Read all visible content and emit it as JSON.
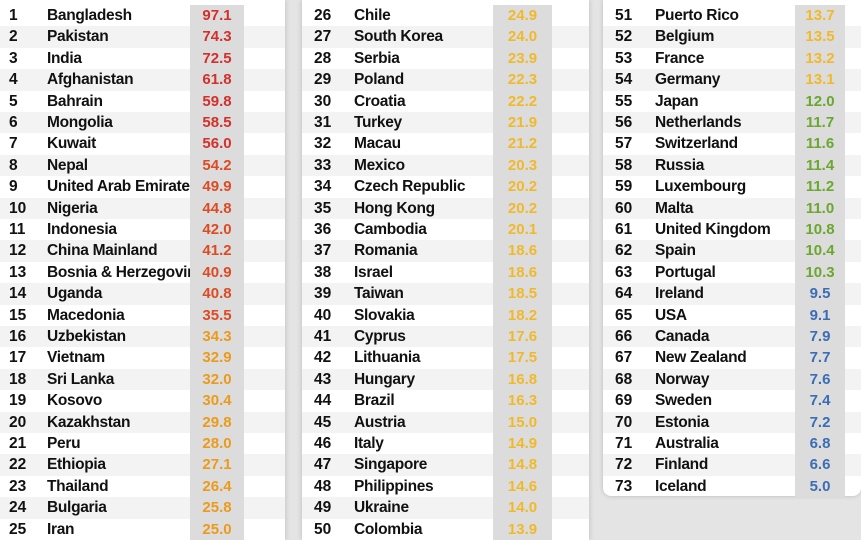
{
  "colors": {
    "red": "#d42f2a",
    "red_orange": "#dd4a24",
    "orange": "#ec9a1a",
    "yellow": "#f1b92a",
    "green": "#6aa72d",
    "blue": "#3a6db6",
    "score_cell_bg": "#dcdcdc"
  },
  "columns": [
    {
      "rows": [
        {
          "rank": "1",
          "country": "Bangladesh",
          "score": "97.1",
          "color": "red"
        },
        {
          "rank": "2",
          "country": "Pakistan",
          "score": "74.3",
          "color": "red"
        },
        {
          "rank": "3",
          "country": "India",
          "score": "72.5",
          "color": "red"
        },
        {
          "rank": "4",
          "country": "Afghanistan",
          "score": "61.8",
          "color": "red"
        },
        {
          "rank": "5",
          "country": "Bahrain",
          "score": "59.8",
          "color": "red"
        },
        {
          "rank": "6",
          "country": "Mongolia",
          "score": "58.5",
          "color": "red"
        },
        {
          "rank": "7",
          "country": "Kuwait",
          "score": "56.0",
          "color": "red"
        },
        {
          "rank": "8",
          "country": "Nepal",
          "score": "54.2",
          "color": "red_orange"
        },
        {
          "rank": "9",
          "country": "United Arab Emirates",
          "score": "49.9",
          "color": "red_orange"
        },
        {
          "rank": "10",
          "country": "Nigeria",
          "score": "44.8",
          "color": "red_orange"
        },
        {
          "rank": "11",
          "country": "Indonesia",
          "score": "42.0",
          "color": "red_orange"
        },
        {
          "rank": "12",
          "country": "China Mainland",
          "score": "41.2",
          "color": "red_orange"
        },
        {
          "rank": "13",
          "country": "Bosnia & Herzegovina",
          "score": "40.9",
          "color": "red_orange"
        },
        {
          "rank": "14",
          "country": "Uganda",
          "score": "40.8",
          "color": "red_orange"
        },
        {
          "rank": "15",
          "country": "Macedonia",
          "score": "35.5",
          "color": "red_orange"
        },
        {
          "rank": "16",
          "country": "Uzbekistan",
          "score": "34.3",
          "color": "orange"
        },
        {
          "rank": "17",
          "country": "Vietnam",
          "score": "32.9",
          "color": "orange"
        },
        {
          "rank": "18",
          "country": "Sri Lanka",
          "score": "32.0",
          "color": "orange"
        },
        {
          "rank": "19",
          "country": "Kosovo",
          "score": "30.4",
          "color": "orange"
        },
        {
          "rank": "20",
          "country": "Kazakhstan",
          "score": "29.8",
          "color": "orange"
        },
        {
          "rank": "21",
          "country": "Peru",
          "score": "28.0",
          "color": "orange"
        },
        {
          "rank": "22",
          "country": "Ethiopia",
          "score": "27.1",
          "color": "orange"
        },
        {
          "rank": "23",
          "country": "Thailand",
          "score": "26.4",
          "color": "orange"
        },
        {
          "rank": "24",
          "country": "Bulgaria",
          "score": "25.8",
          "color": "orange"
        },
        {
          "rank": "25",
          "country": "Iran",
          "score": "25.0",
          "color": "orange"
        }
      ]
    },
    {
      "rows": [
        {
          "rank": "26",
          "country": "Chile",
          "score": "24.9",
          "color": "yellow"
        },
        {
          "rank": "27",
          "country": "South Korea",
          "score": "24.0",
          "color": "yellow"
        },
        {
          "rank": "28",
          "country": "Serbia",
          "score": "23.9",
          "color": "yellow"
        },
        {
          "rank": "29",
          "country": "Poland",
          "score": "22.3",
          "color": "yellow"
        },
        {
          "rank": "30",
          "country": "Croatia",
          "score": "22.2",
          "color": "yellow"
        },
        {
          "rank": "31",
          "country": "Turkey",
          "score": "21.9",
          "color": "yellow"
        },
        {
          "rank": "32",
          "country": "Macau",
          "score": "21.2",
          "color": "yellow"
        },
        {
          "rank": "33",
          "country": "Mexico",
          "score": "20.3",
          "color": "yellow"
        },
        {
          "rank": "34",
          "country": "Czech Republic",
          "score": "20.2",
          "color": "yellow"
        },
        {
          "rank": "35",
          "country": "Hong Kong",
          "score": "20.2",
          "color": "yellow"
        },
        {
          "rank": "36",
          "country": "Cambodia",
          "score": "20.1",
          "color": "yellow"
        },
        {
          "rank": "37",
          "country": "Romania",
          "score": "18.6",
          "color": "yellow"
        },
        {
          "rank": "38",
          "country": "Israel",
          "score": "18.6",
          "color": "yellow"
        },
        {
          "rank": "39",
          "country": "Taiwan",
          "score": "18.5",
          "color": "yellow"
        },
        {
          "rank": "40",
          "country": "Slovakia",
          "score": "18.2",
          "color": "yellow"
        },
        {
          "rank": "41",
          "country": "Cyprus",
          "score": "17.6",
          "color": "yellow"
        },
        {
          "rank": "42",
          "country": "Lithuania",
          "score": "17.5",
          "color": "yellow"
        },
        {
          "rank": "43",
          "country": "Hungary",
          "score": "16.8",
          "color": "yellow"
        },
        {
          "rank": "44",
          "country": "Brazil",
          "score": "16.3",
          "color": "yellow"
        },
        {
          "rank": "45",
          "country": "Austria",
          "score": "15.0",
          "color": "yellow"
        },
        {
          "rank": "46",
          "country": "Italy",
          "score": "14.9",
          "color": "yellow"
        },
        {
          "rank": "47",
          "country": "Singapore",
          "score": "14.8",
          "color": "yellow"
        },
        {
          "rank": "48",
          "country": "Philippines",
          "score": "14.6",
          "color": "yellow"
        },
        {
          "rank": "49",
          "country": "Ukraine",
          "score": "14.0",
          "color": "yellow"
        },
        {
          "rank": "50",
          "country": "Colombia",
          "score": "13.9",
          "color": "yellow"
        }
      ]
    },
    {
      "rows": [
        {
          "rank": "51",
          "country": "Puerto Rico",
          "score": "13.7",
          "color": "yellow"
        },
        {
          "rank": "52",
          "country": "Belgium",
          "score": "13.5",
          "color": "yellow"
        },
        {
          "rank": "53",
          "country": "France",
          "score": "13.2",
          "color": "yellow"
        },
        {
          "rank": "54",
          "country": "Germany",
          "score": "13.1",
          "color": "yellow"
        },
        {
          "rank": "55",
          "country": "Japan",
          "score": "12.0",
          "color": "green"
        },
        {
          "rank": "56",
          "country": "Netherlands",
          "score": "11.7",
          "color": "green"
        },
        {
          "rank": "57",
          "country": "Switzerland",
          "score": "11.6",
          "color": "green"
        },
        {
          "rank": "58",
          "country": "Russia",
          "score": "11.4",
          "color": "green"
        },
        {
          "rank": "59",
          "country": "Luxembourg",
          "score": "11.2",
          "color": "green"
        },
        {
          "rank": "60",
          "country": "Malta",
          "score": "11.0",
          "color": "green"
        },
        {
          "rank": "61",
          "country": "United Kingdom",
          "score": "10.8",
          "color": "green"
        },
        {
          "rank": "62",
          "country": "Spain",
          "score": "10.4",
          "color": "green"
        },
        {
          "rank": "63",
          "country": "Portugal",
          "score": "10.3",
          "color": "green"
        },
        {
          "rank": "64",
          "country": "Ireland",
          "score": "9.5",
          "color": "blue"
        },
        {
          "rank": "65",
          "country": "USA",
          "score": "9.1",
          "color": "blue"
        },
        {
          "rank": "66",
          "country": "Canada",
          "score": "7.9",
          "color": "blue"
        },
        {
          "rank": "67",
          "country": "New Zealand",
          "score": "7.7",
          "color": "blue"
        },
        {
          "rank": "68",
          "country": "Norway",
          "score": "7.6",
          "color": "blue"
        },
        {
          "rank": "69",
          "country": "Sweden",
          "score": "7.4",
          "color": "blue"
        },
        {
          "rank": "70",
          "country": "Estonia",
          "score": "7.2",
          "color": "blue"
        },
        {
          "rank": "71",
          "country": "Australia",
          "score": "6.8",
          "color": "blue"
        },
        {
          "rank": "72",
          "country": "Finland",
          "score": "6.6",
          "color": "blue"
        },
        {
          "rank": "73",
          "country": "Iceland",
          "score": "5.0",
          "color": "blue"
        }
      ]
    }
  ]
}
